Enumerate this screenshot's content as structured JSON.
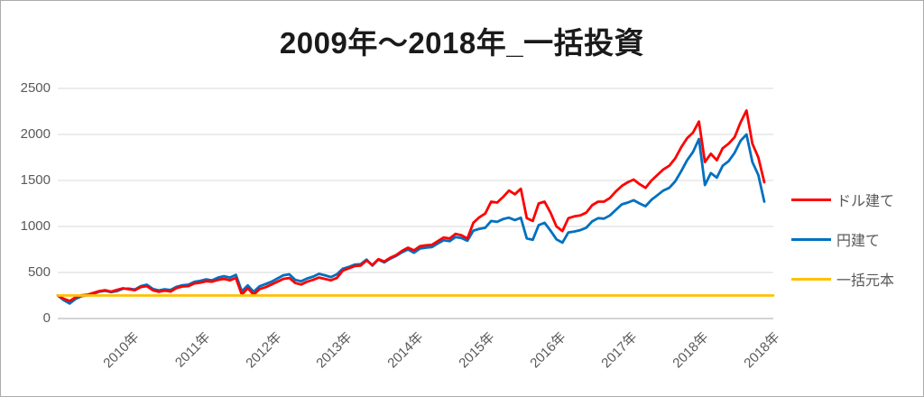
{
  "title": "2009年〜2018年_一括投資",
  "colors": {
    "usd_line": "#FF0000",
    "jpy_line": "#0070C0",
    "principal_line": "#FFC000",
    "axis_text": "#595959",
    "gridline": "#D9D9D9",
    "axis_line": "#C6C6C6",
    "title_text": "#1A1A1A",
    "border": "#ABABAB"
  },
  "legend": {
    "items": [
      {
        "label": "ドル建て",
        "series": "usd"
      },
      {
        "label": "円建て",
        "series": "jpy"
      },
      {
        "label": "一括元本",
        "series": "principal"
      }
    ]
  },
  "chart_data": {
    "type": "line",
    "title": "2009年〜2018年_一括投資",
    "xlabel": "",
    "ylabel": "",
    "ylim": [
      0,
      2500
    ],
    "y_ticks": [
      0,
      500,
      1000,
      1500,
      2000,
      2500
    ],
    "x_tick_labels": [
      "2010年",
      "2011年",
      "2012年",
      "2013年",
      "2014年",
      "2015年",
      "2016年",
      "2017年",
      "2018年",
      "2018年"
    ],
    "grid": "horizontal",
    "legend_position": "right",
    "x_unit": "month",
    "series": [
      {
        "name": "ドル建て",
        "color": "#FF0000",
        "values": [
          250,
          215,
          190,
          230,
          252,
          258,
          278,
          298,
          308,
          292,
          312,
          328,
          318,
          308,
          342,
          352,
          308,
          290,
          303,
          293,
          330,
          348,
          352,
          380,
          390,
          405,
          400,
          420,
          430,
          415,
          440,
          260,
          330,
          258,
          320,
          340,
          370,
          400,
          430,
          440,
          385,
          370,
          400,
          420,
          445,
          430,
          415,
          440,
          520,
          545,
          570,
          575,
          630,
          580,
          645,
          620,
          660,
          690,
          735,
          770,
          740,
          785,
          795,
          800,
          840,
          880,
          870,
          920,
          905,
          870,
          1040,
          1100,
          1140,
          1270,
          1260,
          1320,
          1390,
          1350,
          1410,
          1090,
          1060,
          1250,
          1270,
          1150,
          1000,
          950,
          1090,
          1110,
          1120,
          1150,
          1230,
          1270,
          1270,
          1310,
          1380,
          1440,
          1480,
          1510,
          1460,
          1420,
          1500,
          1560,
          1620,
          1660,
          1740,
          1860,
          1960,
          2020,
          2140,
          1700,
          1790,
          1720,
          1850,
          1900,
          1970,
          2130,
          2260,
          1900,
          1750,
          1480
        ]
      },
      {
        "name": "円建て",
        "color": "#0070C0",
        "values": [
          250,
          200,
          163,
          212,
          243,
          252,
          268,
          292,
          300,
          287,
          298,
          325,
          325,
          315,
          352,
          368,
          322,
          305,
          318,
          310,
          345,
          362,
          368,
          398,
          410,
          425,
          415,
          445,
          460,
          445,
          475,
          295,
          360,
          290,
          350,
          375,
          400,
          435,
          470,
          480,
          420,
          405,
          435,
          455,
          485,
          470,
          450,
          480,
          540,
          560,
          585,
          590,
          640,
          575,
          640,
          610,
          650,
          680,
          720,
          750,
          715,
          760,
          770,
          775,
          815,
          850,
          840,
          885,
          875,
          845,
          955,
          975,
          985,
          1060,
          1050,
          1080,
          1095,
          1070,
          1095,
          870,
          855,
          1015,
          1040,
          955,
          860,
          825,
          935,
          945,
          960,
          985,
          1055,
          1090,
          1085,
          1120,
          1180,
          1240,
          1260,
          1285,
          1250,
          1220,
          1290,
          1340,
          1390,
          1420,
          1490,
          1600,
          1720,
          1810,
          1950,
          1450,
          1580,
          1530,
          1660,
          1710,
          1800,
          1930,
          2000,
          1700,
          1560,
          1270
        ]
      },
      {
        "name": "一括元本",
        "color": "#FFC000",
        "constant_value": 250
      }
    ]
  }
}
